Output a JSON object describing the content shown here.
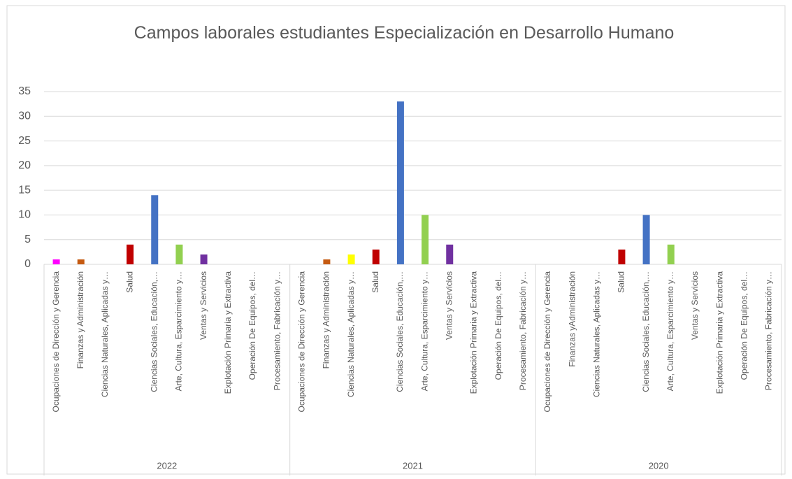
{
  "chart_data": {
    "type": "bar",
    "title": "Campos laborales estudiantes Especialización en Desarrollo Humano",
    "groups": [
      "2022",
      "2021",
      "2020"
    ],
    "categories": [
      "Ocupaciones de Dirección y Gerencia",
      "Finanzas y Administración",
      "Ciencias Naturales, Aplicadas y…",
      "Salud",
      "Ciencias Sociales, Educación,…",
      "Arte, Cultura, Esparcimiento y…",
      "Ventas y Servicios",
      "Explotación Primaria y Extractiva",
      "Operación De Equipos, del…",
      "Procesamiento, Fabricación y…",
      "Ocupaciones de Dirección y Gerencia",
      "Finanzas y Administración",
      "Ciencias Naturales, Aplicadas y…",
      "Salud",
      "Ciencias Sociales, Educación,…",
      "Arte, Cultura, Esparcimiento y…",
      "Ventas y Servicios",
      "Explotación Primaria y Extractiva",
      "Operación De Equipos, del…",
      "Procesamiento, Fabricación y…",
      "Ocupaciones de Dirección y Gerencia",
      "Finanzas yAdministración",
      "Ciencias Naturales, Aplicadas y…",
      "Salud",
      "Ciencias Sociales, Educación,…",
      "Arte, Cultura, Esparcimiento y…",
      "Ventas y Servicios",
      "Explotación Primaria y Extractiva",
      "Operación De Equipos, del…",
      "Procesamiento, Fabricación y…"
    ],
    "values": [
      1,
      1,
      0,
      4,
      14,
      4,
      2,
      0,
      0,
      0,
      0,
      1,
      2,
      3,
      33,
      10,
      4,
      0,
      0,
      0,
      0,
      0,
      0,
      3,
      10,
      4,
      0,
      0,
      0,
      0
    ],
    "colors": [
      "#ff00ff",
      "#c55a11",
      null,
      "#c00000",
      "#4472c4",
      "#92d050",
      "#7030a0",
      null,
      null,
      null,
      null,
      "#c55a11",
      "#ffff00",
      "#c00000",
      "#4472c4",
      "#92d050",
      "#7030a0",
      null,
      null,
      null,
      null,
      null,
      null,
      "#c00000",
      "#4472c4",
      "#92d050",
      null,
      null,
      null,
      null
    ],
    "ylim": [
      0,
      35
    ],
    "yticks": [
      0,
      5,
      10,
      15,
      20,
      25,
      30,
      35
    ],
    "grid": true
  }
}
